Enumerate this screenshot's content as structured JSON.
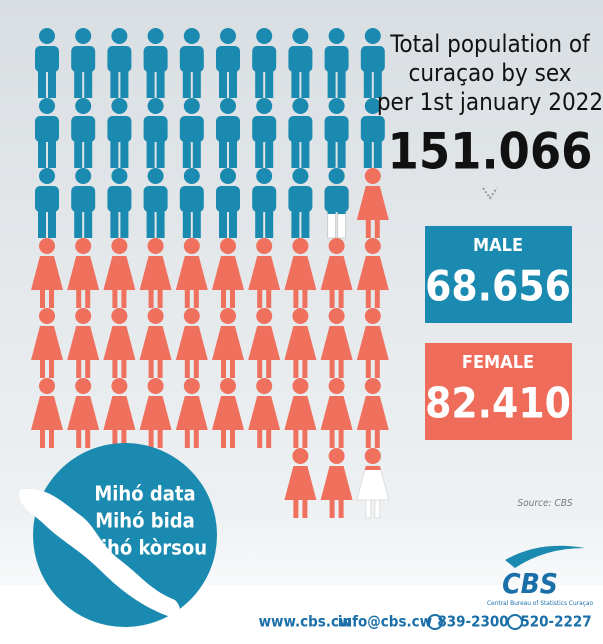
{
  "header": {
    "title_lines": [
      "Total population of",
      "curaçao by sex",
      "per 1st january 2022"
    ],
    "total": "151.066"
  },
  "male": {
    "label": "MALE",
    "value": "68.656"
  },
  "female": {
    "label": "FEMALE",
    "value": "82.410"
  },
  "source": "Source: CBS",
  "slogan": [
    "Mihó data",
    "Mihó bida",
    "Mihó kòrsou"
  ],
  "footer": {
    "website": "www.cbs.cw",
    "email": "info@cbs.cw",
    "phone1": "839-2300",
    "phone2": "520-2227"
  },
  "logo": {
    "name": "CBS",
    "subtitle": "Central Bureau of Statistics Curaçao"
  }
}
